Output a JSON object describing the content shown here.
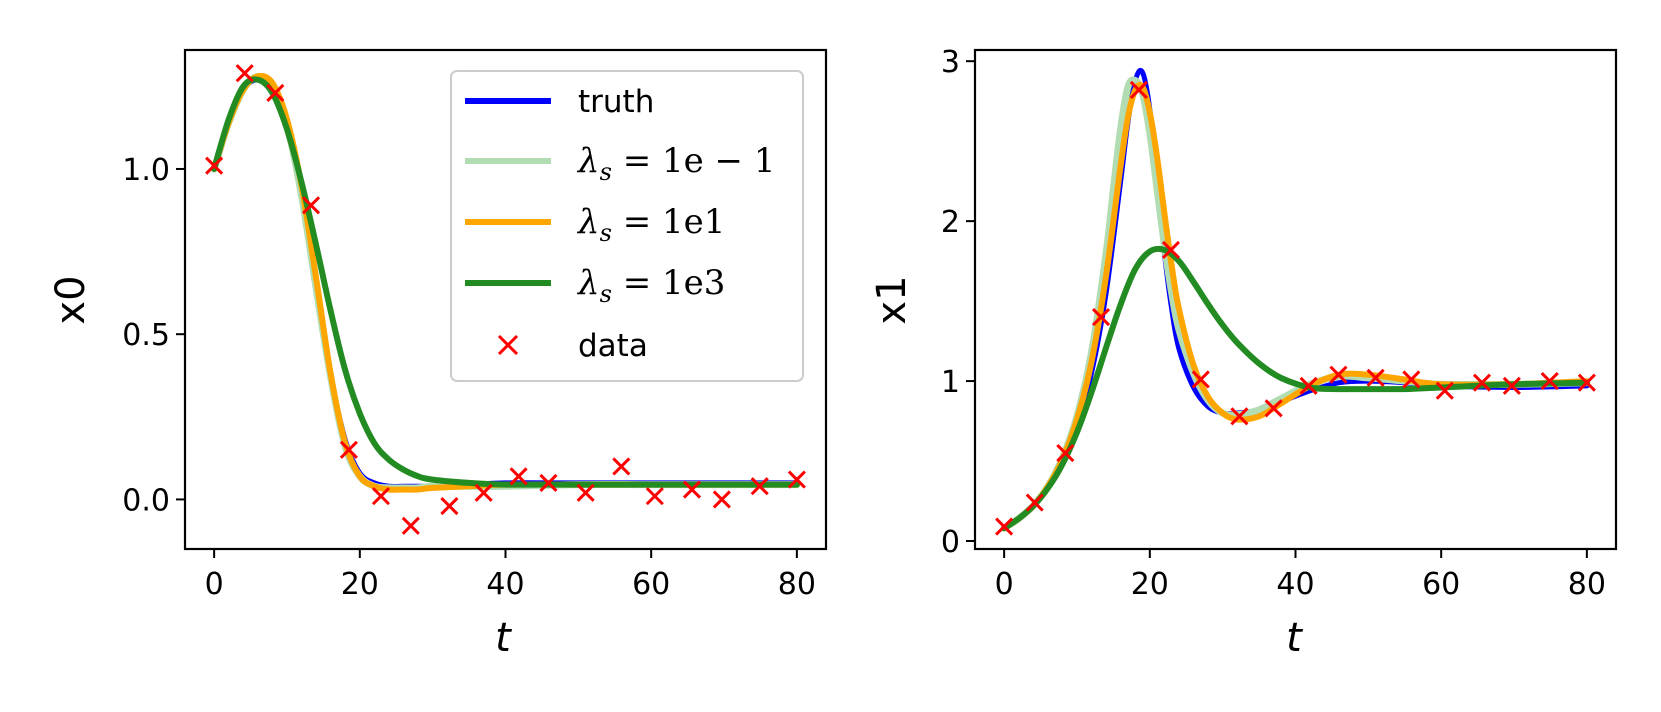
{
  "chart_data": [
    {
      "type": "line",
      "xlabel": "t",
      "ylabel": "x0",
      "xlim": [
        -4,
        84
      ],
      "ylim": [
        -0.15,
        1.36
      ],
      "xticks": [
        "0",
        "20",
        "40",
        "60",
        "80"
      ],
      "yticks": [
        "0.0",
        "0.5",
        "1.0"
      ],
      "legend_position": "upper right",
      "grid": false,
      "series": [
        {
          "name": "truth",
          "color": "#0000ff",
          "x": [
            0,
            2,
            4,
            6,
            8,
            10,
            12,
            14,
            16,
            18,
            20,
            22,
            24,
            26,
            28,
            30,
            35,
            40,
            50,
            60,
            70,
            80
          ],
          "y": [
            1.0,
            1.14,
            1.24,
            1.27,
            1.24,
            1.12,
            0.92,
            0.65,
            0.38,
            0.18,
            0.08,
            0.05,
            0.04,
            0.04,
            0.04,
            0.04,
            0.045,
            0.05,
            0.05,
            0.05,
            0.05,
            0.05
          ]
        },
        {
          "name": "λs = 1e − 1",
          "color": "#b2dcb2",
          "x": [
            0,
            2,
            4,
            6,
            8,
            10,
            12,
            14,
            16,
            18,
            20,
            22,
            24,
            26,
            28,
            30,
            35,
            40,
            50,
            60,
            70,
            80
          ],
          "y": [
            1.0,
            1.14,
            1.24,
            1.28,
            1.25,
            1.13,
            0.92,
            0.64,
            0.37,
            0.16,
            0.07,
            0.04,
            0.035,
            0.035,
            0.035,
            0.04,
            0.04,
            0.04,
            0.045,
            0.045,
            0.045,
            0.045
          ]
        },
        {
          "name": "λs = 1e1",
          "color": "#ffa500",
          "x": [
            0,
            2,
            4,
            6,
            8,
            10,
            12,
            14,
            16,
            18,
            20,
            22,
            24,
            26,
            28,
            30,
            35,
            40,
            50,
            60,
            70,
            80
          ],
          "y": [
            1.0,
            1.14,
            1.24,
            1.28,
            1.26,
            1.15,
            0.95,
            0.67,
            0.38,
            0.17,
            0.07,
            0.04,
            0.03,
            0.03,
            0.03,
            0.035,
            0.04,
            0.045,
            0.045,
            0.045,
            0.045,
            0.045
          ]
        },
        {
          "name": "λs = 1e3",
          "color": "#228b22",
          "x": [
            0,
            2,
            4,
            6,
            8,
            10,
            12,
            14,
            16,
            18,
            20,
            22,
            24,
            26,
            28,
            30,
            35,
            40,
            50,
            60,
            70,
            80
          ],
          "y": [
            1.0,
            1.15,
            1.25,
            1.27,
            1.23,
            1.12,
            0.96,
            0.77,
            0.57,
            0.39,
            0.26,
            0.17,
            0.12,
            0.09,
            0.07,
            0.06,
            0.05,
            0.045,
            0.045,
            0.045,
            0.045,
            0.045
          ]
        }
      ],
      "scatter": {
        "name": "data",
        "color": "#ff0000",
        "marker": "x",
        "x": [
          0,
          4.2,
          8.4,
          13.3,
          18.5,
          22.9,
          27.0,
          32.3,
          37.0,
          41.8,
          45.9,
          51.0,
          55.9,
          60.5,
          65.6,
          69.7,
          74.9,
          80.0
        ],
        "y": [
          1.01,
          1.29,
          1.23,
          0.89,
          0.15,
          0.01,
          -0.08,
          -0.02,
          0.02,
          0.07,
          0.05,
          0.02,
          0.1,
          0.01,
          0.03,
          0.0,
          0.04,
          0.06
        ]
      }
    },
    {
      "type": "line",
      "xlabel": "t",
      "ylabel": "x1",
      "xlim": [
        -4,
        84
      ],
      "ylim": [
        -0.05,
        3.07
      ],
      "xticks": [
        "0",
        "20",
        "40",
        "60",
        "80"
      ],
      "yticks": [
        "0",
        "1",
        "2",
        "3"
      ],
      "grid": false,
      "series": [
        {
          "name": "truth",
          "color": "#0000ff",
          "x": [
            0,
            2,
            4,
            6,
            8,
            10,
            12,
            14,
            16,
            17,
            18,
            19,
            20,
            21,
            22,
            23,
            24,
            26,
            28,
            30,
            32,
            35,
            38,
            42,
            46,
            50,
            55,
            60,
            70,
            80
          ],
          "y": [
            0.08,
            0.14,
            0.22,
            0.34,
            0.5,
            0.73,
            1.05,
            1.55,
            2.25,
            2.62,
            2.88,
            2.93,
            2.7,
            2.25,
            1.8,
            1.45,
            1.2,
            0.96,
            0.84,
            0.8,
            0.8,
            0.82,
            0.87,
            0.94,
            0.99,
            1.0,
            0.99,
            0.97,
            0.96,
            0.97
          ]
        },
        {
          "name": "λs = 1e − 1",
          "color": "#b2dcb2",
          "x": [
            0,
            2,
            4,
            6,
            8,
            10,
            12,
            14,
            15,
            16,
            17,
            18,
            19,
            20,
            21,
            22,
            23,
            24,
            26,
            28,
            30,
            32,
            35,
            38,
            42,
            46,
            50,
            55,
            60,
            70,
            80
          ],
          "y": [
            0.08,
            0.14,
            0.22,
            0.34,
            0.52,
            0.78,
            1.18,
            1.8,
            2.2,
            2.58,
            2.84,
            2.88,
            2.8,
            2.55,
            2.2,
            1.85,
            1.55,
            1.32,
            1.05,
            0.88,
            0.8,
            0.79,
            0.82,
            0.89,
            0.98,
            1.03,
            1.02,
            1.0,
            0.98,
            0.98,
            0.99
          ]
        },
        {
          "name": "λs = 1e1",
          "color": "#ffa500",
          "x": [
            0,
            2,
            4,
            6,
            8,
            10,
            12,
            14,
            16,
            17,
            18,
            19,
            20,
            21,
            22,
            23,
            24,
            26,
            28,
            30,
            32,
            35,
            38,
            42,
            46,
            50,
            55,
            60,
            70,
            80
          ],
          "y": [
            0.08,
            0.14,
            0.22,
            0.34,
            0.51,
            0.76,
            1.12,
            1.66,
            2.35,
            2.65,
            2.82,
            2.84,
            2.68,
            2.4,
            2.05,
            1.72,
            1.45,
            1.1,
            0.9,
            0.8,
            0.76,
            0.78,
            0.86,
            0.97,
            1.04,
            1.04,
            1.01,
            0.98,
            0.98,
            1.0
          ]
        },
        {
          "name": "λs = 1e3",
          "color": "#228b22",
          "x": [
            0,
            2,
            4,
            6,
            8,
            10,
            12,
            14,
            16,
            18,
            20,
            22,
            24,
            26,
            28,
            30,
            32,
            35,
            38,
            42,
            46,
            50,
            55,
            60,
            70,
            80
          ],
          "y": [
            0.08,
            0.14,
            0.22,
            0.33,
            0.48,
            0.68,
            0.93,
            1.21,
            1.48,
            1.7,
            1.81,
            1.82,
            1.75,
            1.62,
            1.48,
            1.35,
            1.24,
            1.11,
            1.02,
            0.96,
            0.95,
            0.95,
            0.95,
            0.96,
            0.98,
            0.99
          ]
        }
      ],
      "scatter": {
        "name": "data",
        "color": "#ff0000",
        "marker": "x",
        "x": [
          0,
          4.2,
          8.4,
          13.3,
          18.5,
          22.9,
          27.0,
          32.3,
          37.0,
          41.8,
          45.9,
          51.0,
          55.9,
          60.5,
          65.6,
          69.7,
          74.9,
          80.0
        ],
        "y": [
          0.09,
          0.24,
          0.55,
          1.4,
          2.82,
          1.82,
          1.01,
          0.78,
          0.83,
          0.97,
          1.04,
          1.02,
          1.01,
          0.94,
          0.99,
          0.97,
          1.0,
          0.99
        ]
      }
    }
  ],
  "legend": {
    "entries": [
      {
        "label": "truth",
        "kind": "line",
        "color": "#0000ff"
      },
      {
        "label_symbol": "λ",
        "label_sub": "s",
        "label_rest": " = 1e − 1",
        "kind": "line",
        "color": "#b2dcb2"
      },
      {
        "label_symbol": "λ",
        "label_sub": "s",
        "label_rest": " = 1e1",
        "kind": "line",
        "color": "#ffa500"
      },
      {
        "label_symbol": "λ",
        "label_sub": "s",
        "label_rest": " = 1e3",
        "kind": "line",
        "color": "#228b22"
      },
      {
        "label": "data",
        "kind": "marker",
        "color": "#ff0000"
      }
    ]
  }
}
